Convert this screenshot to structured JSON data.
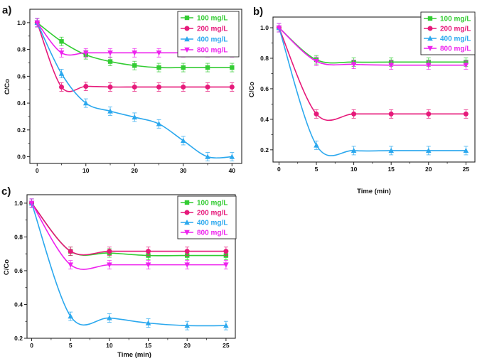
{
  "chart_data": [
    {
      "type": "line",
      "panel_label": "a)",
      "xlabel": "",
      "ylabel": "C/Co",
      "xlim": [
        -1.5,
        42
      ],
      "ylim": [
        -0.05,
        1.1
      ],
      "xticks": [
        "0",
        "10",
        "20",
        "30",
        "40"
      ],
      "yticks": [
        "0.0",
        "0.2",
        "0.4",
        "0.6",
        "0.8",
        "1.0"
      ],
      "legend_position": "top-right",
      "series": [
        {
          "name": "100 mg/L",
          "color": "#33cc33",
          "marker": "square",
          "x": [
            0,
            5,
            10,
            15,
            20,
            25,
            30,
            35,
            40
          ],
          "values": [
            1.0,
            0.86,
            0.76,
            0.71,
            0.68,
            0.665,
            0.665,
            0.665,
            0.665
          ]
        },
        {
          "name": "200 mg/L",
          "color": "#e6197a",
          "marker": "circle",
          "x": [
            0,
            5,
            10,
            15,
            20,
            25,
            30,
            35,
            40
          ],
          "values": [
            1.0,
            0.52,
            0.525,
            0.52,
            0.52,
            0.52,
            0.52,
            0.52,
            0.52
          ]
        },
        {
          "name": "400 mg/L",
          "color": "#2ba8ee",
          "marker": "triangle-up",
          "x": [
            0,
            5,
            10,
            15,
            20,
            25,
            30,
            35,
            40
          ],
          "values": [
            1.0,
            0.62,
            0.4,
            0.34,
            0.295,
            0.245,
            0.12,
            0.0,
            0.0
          ]
        },
        {
          "name": "800 mg/L",
          "color": "#ee22ee",
          "marker": "triangle-down",
          "x": [
            0,
            5,
            10,
            15,
            20,
            25,
            30,
            35,
            40
          ],
          "values": [
            1.0,
            0.775,
            0.775,
            0.775,
            0.775,
            0.775,
            0.775,
            0.775,
            0.775
          ]
        }
      ]
    },
    {
      "type": "line",
      "panel_label": "b)",
      "xlabel": "Time (min)",
      "ylabel": "C/Co",
      "xlim": [
        -0.8,
        26.2
      ],
      "ylim": [
        0.12,
        1.07
      ],
      "xticks": [
        "0",
        "5",
        "10",
        "15",
        "20",
        "25"
      ],
      "yticks": [
        "0.2",
        "0.4",
        "0.6",
        "0.8",
        "1.0"
      ],
      "legend_position": "top-right",
      "series": [
        {
          "name": "100 mg/L",
          "color": "#33cc33",
          "marker": "square",
          "x": [
            0,
            5,
            10,
            15,
            20,
            25
          ],
          "values": [
            1.0,
            0.79,
            0.775,
            0.775,
            0.775,
            0.775
          ]
        },
        {
          "name": "200 mg/L",
          "color": "#e6197a",
          "marker": "circle",
          "x": [
            0,
            5,
            10,
            15,
            20,
            25
          ],
          "values": [
            1.0,
            0.435,
            0.435,
            0.435,
            0.435,
            0.435
          ]
        },
        {
          "name": "400 mg/L",
          "color": "#2ba8ee",
          "marker": "triangle-up",
          "x": [
            0,
            5,
            10,
            15,
            20,
            25
          ],
          "values": [
            1.0,
            0.23,
            0.195,
            0.195,
            0.195,
            0.195
          ]
        },
        {
          "name": "800 mg/L",
          "color": "#ee22ee",
          "marker": "triangle-down",
          "x": [
            0,
            5,
            10,
            15,
            20,
            25
          ],
          "values": [
            1.0,
            0.78,
            0.76,
            0.755,
            0.755,
            0.755
          ]
        }
      ]
    },
    {
      "type": "line",
      "panel_label": "c)",
      "xlabel": "Time (min)",
      "ylabel": "C/Co",
      "xlim": [
        -0.6,
        26.2
      ],
      "ylim": [
        0.2,
        1.05
      ],
      "xticks": [
        "0",
        "5",
        "10",
        "15",
        "20",
        "25"
      ],
      "yticks": [
        "0.2",
        "0.4",
        "0.6",
        "0.8",
        "1.0"
      ],
      "legend_position": "top-right",
      "series": [
        {
          "name": "100 mg/L",
          "color": "#33cc33",
          "marker": "square",
          "x": [
            0,
            5,
            10,
            15,
            20,
            25
          ],
          "values": [
            1.0,
            0.715,
            0.705,
            0.69,
            0.69,
            0.69
          ]
        },
        {
          "name": "200 mg/L",
          "color": "#e6197a",
          "marker": "circle",
          "x": [
            0,
            5,
            10,
            15,
            20,
            25
          ],
          "values": [
            1.0,
            0.715,
            0.715,
            0.715,
            0.715,
            0.715
          ]
        },
        {
          "name": "400 mg/L",
          "color": "#2ba8ee",
          "marker": "triangle-up",
          "x": [
            0,
            5,
            10,
            15,
            20,
            25
          ],
          "values": [
            1.0,
            0.33,
            0.32,
            0.29,
            0.275,
            0.275
          ]
        },
        {
          "name": "800 mg/L",
          "color": "#ee22ee",
          "marker": "triangle-down",
          "x": [
            0,
            5,
            10,
            15,
            20,
            25
          ],
          "values": [
            1.0,
            0.635,
            0.635,
            0.635,
            0.635,
            0.635
          ]
        }
      ]
    }
  ]
}
